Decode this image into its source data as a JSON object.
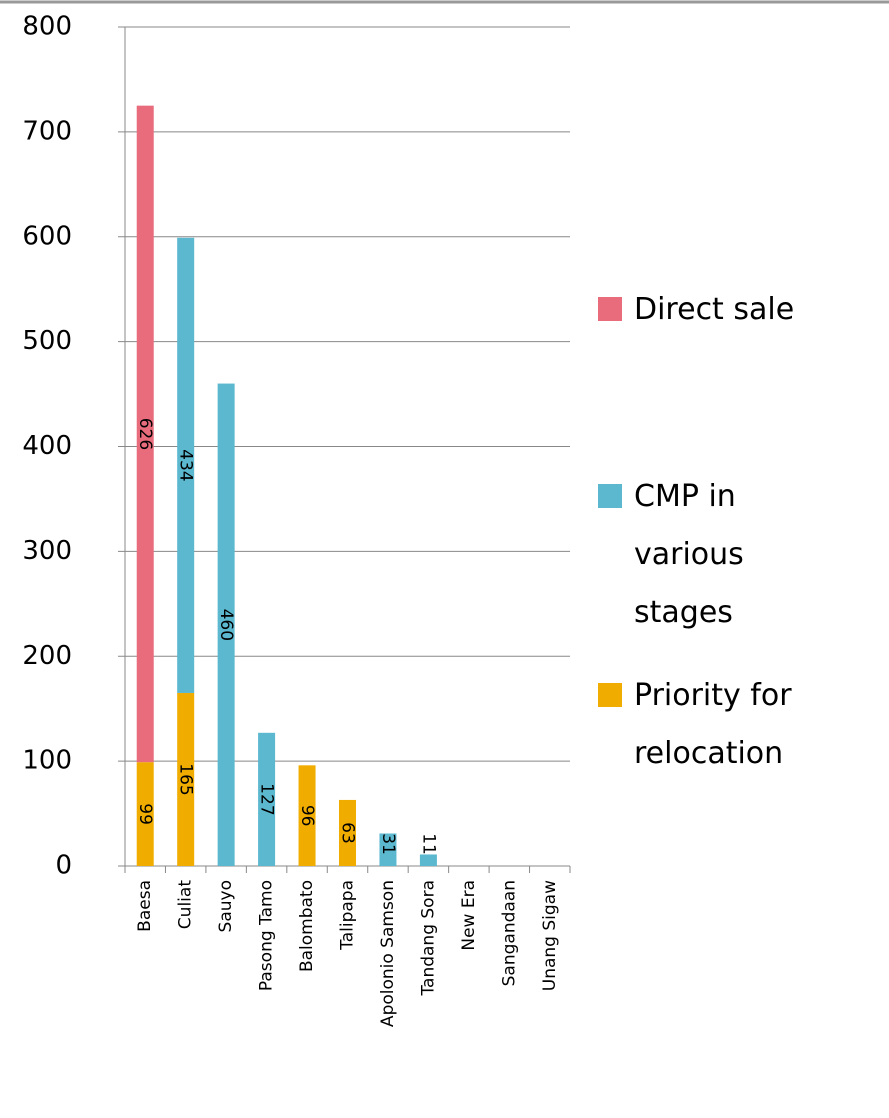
{
  "chart_data": {
    "type": "stacked-bar",
    "categories": [
      "Baesa",
      "Culiat",
      "Sauyo",
      "Pasong Tamo",
      "Balombato",
      "Talipapa",
      "Apolonio Samson",
      "Tandang Sora",
      "New Era",
      "Sangandaan",
      "Unang Sigaw"
    ],
    "series": [
      {
        "name": "Direct sale",
        "color": "#e86c7c",
        "values": [
          626,
          null,
          null,
          null,
          null,
          null,
          null,
          null,
          null,
          null,
          null
        ]
      },
      {
        "name": "CMP in various stages",
        "color": "#5bb8cf",
        "values": [
          null,
          434,
          460,
          127,
          null,
          null,
          31,
          11,
          null,
          null,
          null
        ]
      },
      {
        "name": "Priority for relocation",
        "color": "#f0ad00",
        "values": [
          99,
          165,
          null,
          null,
          96,
          63,
          null,
          null,
          null,
          null,
          null
        ]
      }
    ],
    "ylim": [
      0,
      800
    ],
    "yticks": [
      0,
      100,
      200,
      300,
      400,
      500,
      600,
      700,
      800
    ],
    "grid": true
  }
}
